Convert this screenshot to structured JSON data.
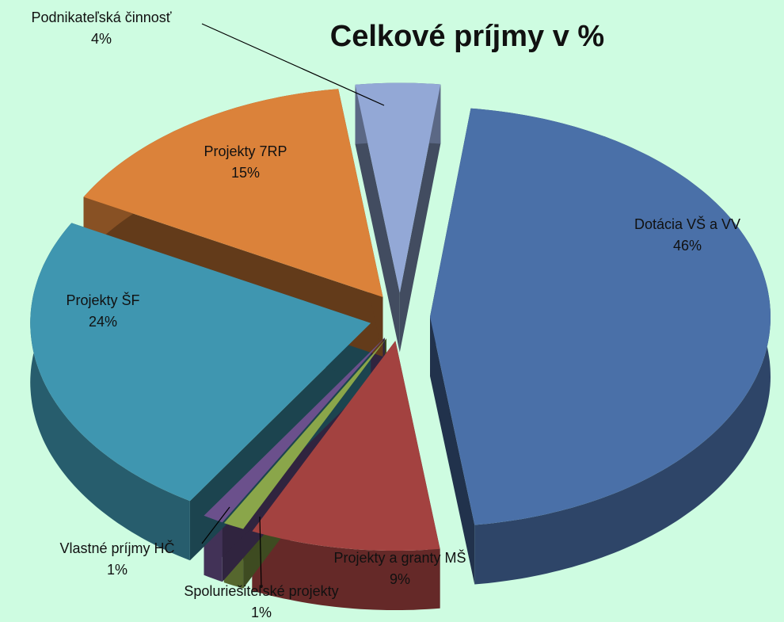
{
  "chart_data": {
    "type": "pie",
    "title": "Celkové príjmy v %",
    "categories": [
      "Dotácia VŠ a VV",
      "Projekty a granty MŠ",
      "Spoluriešiteľské projekty",
      "Vlastné príjmy HČ",
      "Projekty ŠF",
      "Projekty 7RP",
      "Podnikateľská činnosť"
    ],
    "values": [
      46,
      9,
      1,
      1,
      24,
      15,
      4
    ],
    "value_labels": [
      "46%",
      "9%",
      "1%",
      "1%",
      "24%",
      "15%",
      "4%"
    ],
    "colors": [
      "#4a70a8",
      "#a34240",
      "#8aa64a",
      "#6b508c",
      "#3f96b0",
      "#db823a",
      "#93a8d6"
    ]
  }
}
